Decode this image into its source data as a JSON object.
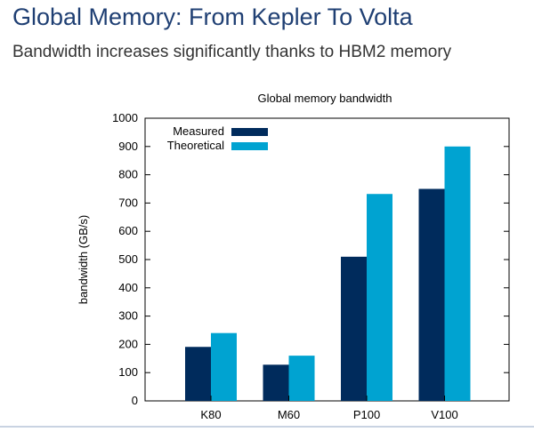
{
  "slide": {
    "title": "Global Memory: From Kepler To Volta",
    "subtitle": "Bandwidth increases significantly thanks to HBM2 memory"
  },
  "chart_data": {
    "type": "bar",
    "title": "Global memory bandwidth",
    "xlabel": "",
    "ylabel": "bandwidth (GB/s)",
    "categories": [
      "K80",
      "M60",
      "P100",
      "V100"
    ],
    "series": [
      {
        "name": "Measured",
        "color": "#002b5c",
        "values": [
          191,
          128,
          510,
          750
        ]
      },
      {
        "name": "Theoretical",
        "color": "#00a3d1",
        "values": [
          240,
          160,
          732,
          900
        ]
      }
    ],
    "ylim": [
      0,
      1000
    ],
    "yticks": [
      0,
      100,
      200,
      300,
      400,
      500,
      600,
      700,
      800,
      900,
      1000
    ],
    "grid": false,
    "legend_position": "top-left"
  }
}
